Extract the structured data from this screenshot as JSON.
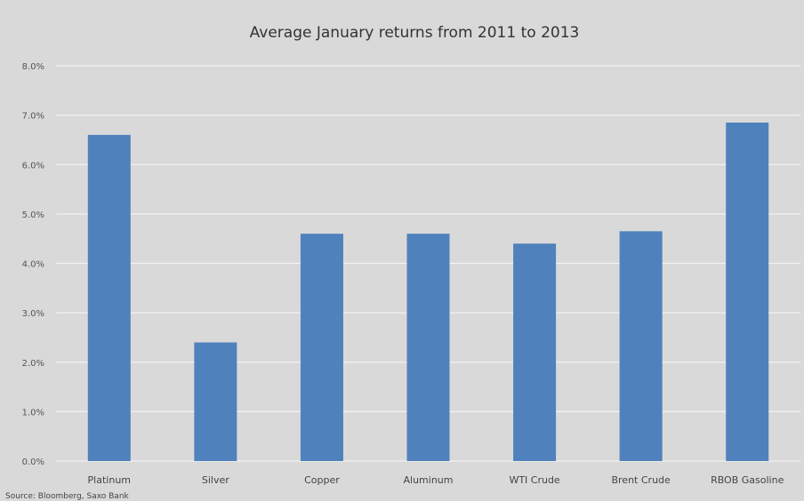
{
  "chart_data": {
    "type": "bar",
    "title": "Average January returns from 2011 to 2013",
    "xlabel": "",
    "ylabel": "",
    "categories": [
      "Platinum",
      "Silver",
      "Copper",
      "Aluminum",
      "WTI Crude",
      "Brent Crude",
      "RBOB Gasoline"
    ],
    "values": [
      6.6,
      2.4,
      4.6,
      4.6,
      4.4,
      4.65,
      6.85
    ],
    "unit": "%",
    "ylim": [
      0,
      8
    ],
    "yticks": [
      "0.0%",
      "1.0%",
      "2.0%",
      "3.0%",
      "4.0%",
      "5.0%",
      "6.0%",
      "7.0%",
      "8.0%"
    ],
    "grid": true,
    "legend": "none",
    "bar_color": "#4f81bd",
    "source": "Source: Bloomberg, Saxo Bank"
  },
  "colors": {
    "background": "#d9d9d9",
    "gridline": "#f2f2f2",
    "bar": "#4f81bd"
  }
}
